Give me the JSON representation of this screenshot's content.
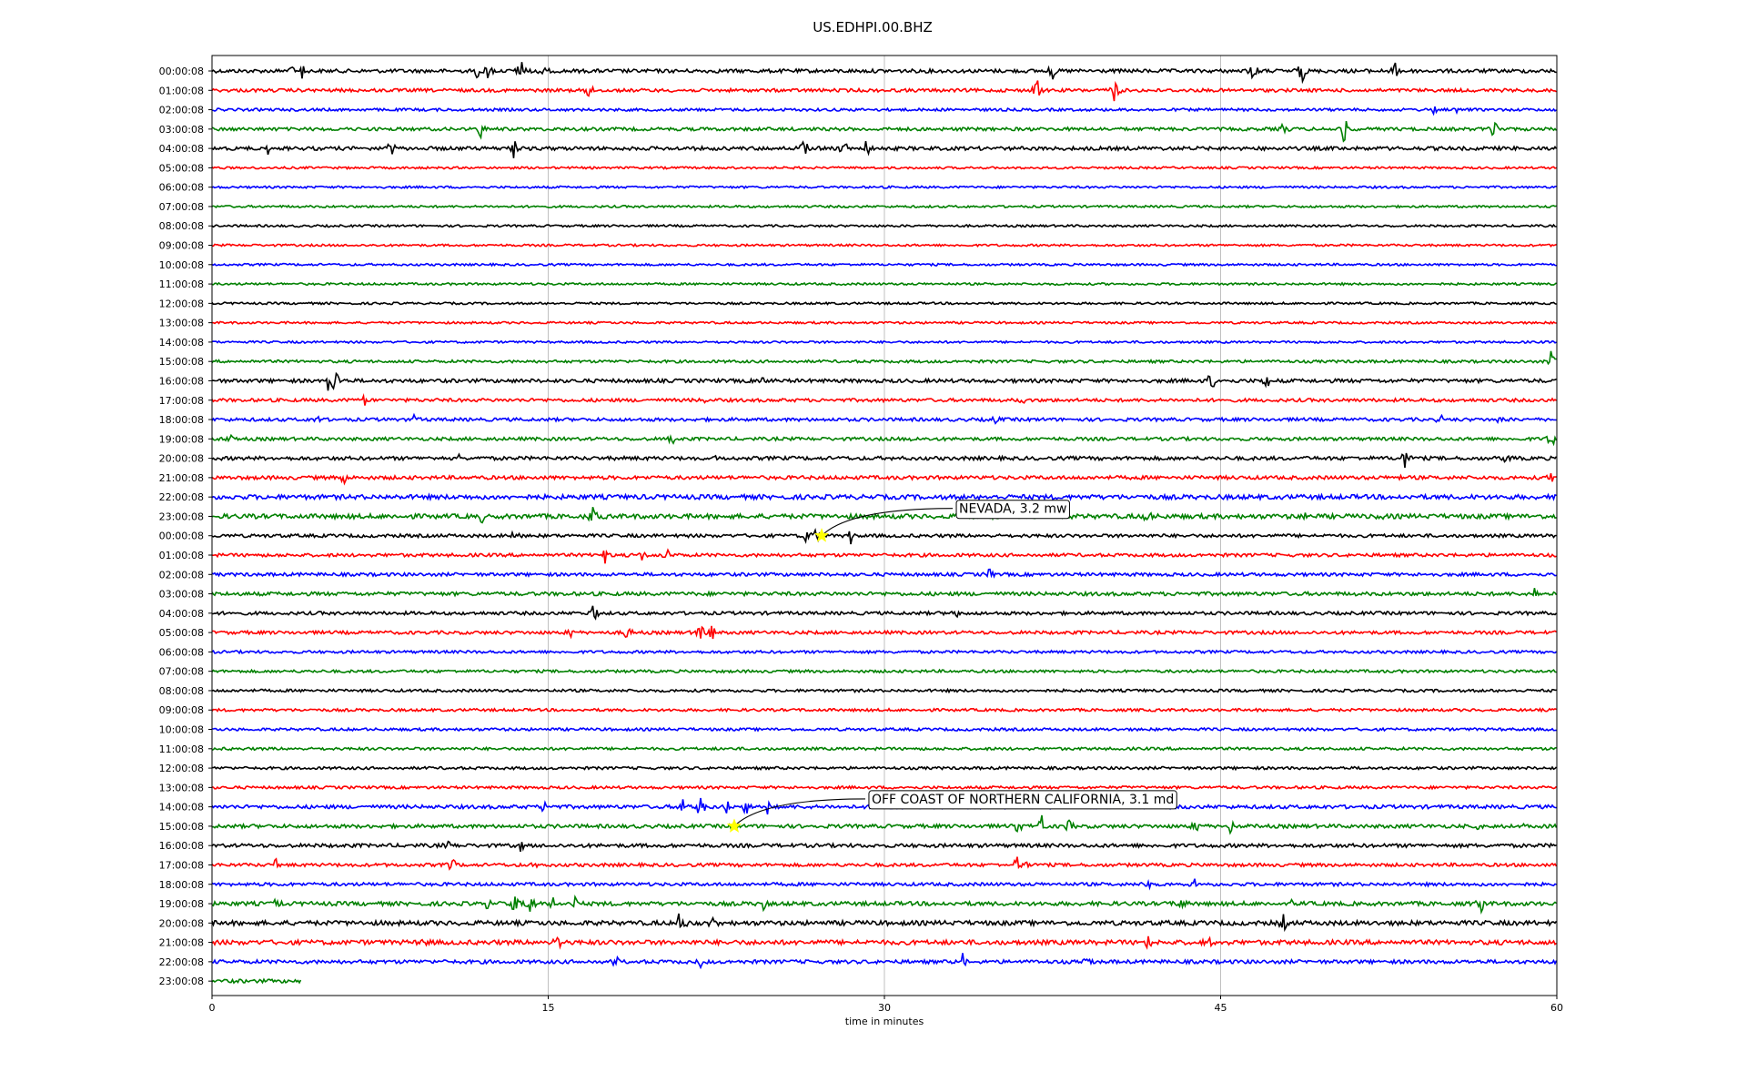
{
  "chart_data": {
    "type": "line",
    "title": "US.EDHPI.00.BHZ",
    "xlabel": "time in minutes",
    "ylabel": "",
    "xlim": [
      0,
      60
    ],
    "x_ticks": [
      "0",
      "15",
      "30",
      "45",
      "60"
    ],
    "x_tick_values": [
      0,
      15,
      30,
      45,
      60
    ],
    "grid": "vertical",
    "legend": "none",
    "color_cycle": [
      "#000000",
      "#ff0000",
      "#0000ff",
      "#008000"
    ],
    "rows": [
      {
        "label": "00:00:08",
        "start": 0,
        "end": 60,
        "noise": 2.0,
        "events": [
          [
            3.6,
            8
          ],
          [
            4,
            12
          ],
          [
            11.8,
            10
          ],
          [
            12.3,
            14
          ],
          [
            13.8,
            16
          ],
          [
            14.7,
            10
          ],
          [
            37.5,
            12
          ],
          [
            46.5,
            16
          ],
          [
            48.6,
            20
          ],
          [
            52.8,
            10
          ]
        ]
      },
      {
        "label": "01:00:08",
        "start": 0,
        "end": 60,
        "noise": 1.8,
        "events": [
          [
            16.8,
            12
          ],
          [
            36.8,
            18
          ],
          [
            40.3,
            18
          ]
        ]
      },
      {
        "label": "02:00:08",
        "start": 0,
        "end": 60,
        "noise": 1.5,
        "events": [
          [
            54.5,
            6
          ],
          [
            55.5,
            6
          ]
        ]
      },
      {
        "label": "03:00:08",
        "start": 0,
        "end": 60,
        "noise": 1.8,
        "events": [
          [
            12,
            12
          ],
          [
            47.8,
            8
          ],
          [
            50.5,
            18
          ],
          [
            57.2,
            14
          ]
        ]
      },
      {
        "label": "04:00:08",
        "start": 0,
        "end": 60,
        "noise": 2.0,
        "events": [
          [
            2.5,
            8
          ],
          [
            8,
            12
          ],
          [
            13.5,
            18
          ],
          [
            26.4,
            14
          ],
          [
            28.2,
            12
          ],
          [
            29.2,
            14
          ]
        ]
      },
      {
        "label": "05:00:08",
        "start": 0,
        "end": 60,
        "noise": 1.2,
        "events": []
      },
      {
        "label": "06:00:08",
        "start": 0,
        "end": 60,
        "noise": 1.2,
        "events": []
      },
      {
        "label": "07:00:08",
        "start": 0,
        "end": 60,
        "noise": 1.2,
        "events": []
      },
      {
        "label": "08:00:08",
        "start": 0,
        "end": 60,
        "noise": 1.2,
        "events": []
      },
      {
        "label": "09:00:08",
        "start": 0,
        "end": 60,
        "noise": 1.2,
        "events": []
      },
      {
        "label": "10:00:08",
        "start": 0,
        "end": 60,
        "noise": 1.2,
        "events": []
      },
      {
        "label": "11:00:08",
        "start": 0,
        "end": 60,
        "noise": 1.2,
        "events": []
      },
      {
        "label": "12:00:08",
        "start": 0,
        "end": 60,
        "noise": 1.2,
        "events": []
      },
      {
        "label": "13:00:08",
        "start": 0,
        "end": 60,
        "noise": 1.2,
        "events": []
      },
      {
        "label": "14:00:08",
        "start": 0,
        "end": 60,
        "noise": 1.2,
        "events": []
      },
      {
        "label": "15:00:08",
        "start": 0,
        "end": 60,
        "noise": 1.5,
        "events": [
          [
            59.8,
            18
          ]
        ]
      },
      {
        "label": "16:00:08",
        "start": 0,
        "end": 60,
        "noise": 2.0,
        "events": [
          [
            5.2,
            12
          ],
          [
            5.5,
            20
          ],
          [
            24.5,
            10
          ],
          [
            44.6,
            16
          ],
          [
            47,
            14
          ]
        ]
      },
      {
        "label": "17:00:08",
        "start": 0,
        "end": 60,
        "noise": 1.8,
        "events": [
          [
            6.8,
            8
          ],
          [
            22,
            6
          ],
          [
            36.2,
            6
          ]
        ]
      },
      {
        "label": "18:00:08",
        "start": 0,
        "end": 60,
        "noise": 1.8,
        "events": [
          [
            4.7,
            6
          ],
          [
            9,
            6
          ],
          [
            35,
            6
          ],
          [
            54.8,
            8
          ],
          [
            57.5,
            6
          ],
          [
            60,
            14
          ]
        ]
      },
      {
        "label": "19:00:08",
        "start": 0,
        "end": 60,
        "noise": 1.8,
        "events": [
          [
            0.8,
            8
          ],
          [
            20.5,
            10
          ],
          [
            31.2,
            5
          ],
          [
            59.8,
            16
          ]
        ]
      },
      {
        "label": "20:00:08",
        "start": 0,
        "end": 60,
        "noise": 2.0,
        "events": [
          [
            11,
            6
          ],
          [
            22.3,
            5
          ],
          [
            53.2,
            18
          ],
          [
            57.7,
            8
          ]
        ]
      },
      {
        "label": "21:00:08",
        "start": 0,
        "end": 60,
        "noise": 2.0,
        "events": [
          [
            5.9,
            8
          ],
          [
            53,
            5
          ],
          [
            59.8,
            10
          ]
        ]
      },
      {
        "label": "22:00:08",
        "start": 0,
        "end": 60,
        "noise": 2.5,
        "events": []
      },
      {
        "label": "23:00:08",
        "start": 0,
        "end": 60,
        "noise": 2.5,
        "events": [
          [
            12,
            8
          ],
          [
            17,
            14
          ],
          [
            41.7,
            10
          ],
          [
            48.8,
            8
          ],
          [
            52,
            10
          ]
        ]
      },
      {
        "label": "00:00:08",
        "start": 0,
        "end": 60,
        "noise": 1.8,
        "events": [
          [
            13.5,
            12
          ],
          [
            26.5,
            10
          ],
          [
            27,
            12
          ],
          [
            28.5,
            12
          ]
        ]
      },
      {
        "label": "01:00:08",
        "start": 0,
        "end": 60,
        "noise": 1.8,
        "events": [
          [
            17.5,
            12
          ],
          [
            19.2,
            10
          ],
          [
            20.3,
            10
          ]
        ]
      },
      {
        "label": "02:00:08",
        "start": 0,
        "end": 60,
        "noise": 1.8,
        "events": [
          [
            34.7,
            8
          ]
        ]
      },
      {
        "label": "03:00:08",
        "start": 0,
        "end": 60,
        "noise": 2.0,
        "events": [
          [
            59,
            8
          ]
        ]
      },
      {
        "label": "04:00:08",
        "start": 0,
        "end": 60,
        "noise": 1.8,
        "events": [
          [
            17,
            14
          ],
          [
            33.2,
            6
          ]
        ]
      },
      {
        "label": "05:00:08",
        "start": 0,
        "end": 60,
        "noise": 1.8,
        "events": [
          [
            16,
            6
          ],
          [
            18.5,
            12
          ],
          [
            21.8,
            16
          ],
          [
            22.3,
            12
          ]
        ]
      },
      {
        "label": "06:00:08",
        "start": 0,
        "end": 60,
        "noise": 1.5,
        "events": []
      },
      {
        "label": "07:00:08",
        "start": 0,
        "end": 60,
        "noise": 1.5,
        "events": []
      },
      {
        "label": "08:00:08",
        "start": 0,
        "end": 60,
        "noise": 1.5,
        "events": []
      },
      {
        "label": "09:00:08",
        "start": 0,
        "end": 60,
        "noise": 1.5,
        "events": []
      },
      {
        "label": "10:00:08",
        "start": 0,
        "end": 60,
        "noise": 1.5,
        "events": []
      },
      {
        "label": "11:00:08",
        "start": 0,
        "end": 60,
        "noise": 1.5,
        "events": []
      },
      {
        "label": "12:00:08",
        "start": 0,
        "end": 60,
        "noise": 1.5,
        "events": []
      },
      {
        "label": "13:00:08",
        "start": 0,
        "end": 60,
        "noise": 1.5,
        "events": []
      },
      {
        "label": "14:00:08",
        "start": 0,
        "end": 60,
        "noise": 2.0,
        "events": [
          [
            14.8,
            8
          ],
          [
            21,
            12
          ],
          [
            21.8,
            18
          ],
          [
            22.9,
            24
          ],
          [
            23.8,
            16
          ],
          [
            24.8,
            10
          ]
        ]
      },
      {
        "label": "15:00:08",
        "start": 0,
        "end": 60,
        "noise": 2.0,
        "events": [
          [
            36,
            14
          ],
          [
            37,
            14
          ],
          [
            38.2,
            10
          ],
          [
            43.9,
            8
          ],
          [
            45.4,
            12
          ],
          [
            56.5,
            8
          ],
          [
            58.5,
            6
          ]
        ]
      },
      {
        "label": "16:00:08",
        "start": 0,
        "end": 60,
        "noise": 2.0,
        "events": [
          [
            10.5,
            6
          ],
          [
            13.8,
            8
          ]
        ]
      },
      {
        "label": "17:00:08",
        "start": 0,
        "end": 60,
        "noise": 1.8,
        "events": [
          [
            2.9,
            12
          ],
          [
            10.7,
            10
          ],
          [
            14.4,
            6
          ],
          [
            35.9,
            10
          ],
          [
            36.4,
            8
          ]
        ]
      },
      {
        "label": "18:00:08",
        "start": 0,
        "end": 60,
        "noise": 1.8,
        "events": [
          [
            41.8,
            6
          ],
          [
            43.8,
            8
          ]
        ]
      },
      {
        "label": "19:00:08",
        "start": 0,
        "end": 60,
        "noise": 2.2,
        "events": [
          [
            2.8,
            8
          ],
          [
            12.3,
            8
          ],
          [
            13.5,
            12
          ],
          [
            14.2,
            14
          ],
          [
            15.2,
            10
          ],
          [
            16.2,
            8
          ],
          [
            24.6,
            8
          ],
          [
            43.2,
            10
          ],
          [
            48.2,
            6
          ],
          [
            56.6,
            10
          ]
        ]
      },
      {
        "label": "20:00:08",
        "start": 0,
        "end": 60,
        "noise": 2.5,
        "events": [
          [
            20.8,
            12
          ],
          [
            21.2,
            10
          ],
          [
            22.3,
            12
          ],
          [
            47.8,
            10
          ]
        ]
      },
      {
        "label": "21:00:08",
        "start": 0,
        "end": 60,
        "noise": 2.5,
        "events": [
          [
            9.5,
            12
          ],
          [
            15.4,
            14
          ],
          [
            41.8,
            16
          ],
          [
            44.5,
            16
          ]
        ]
      },
      {
        "label": "22:00:08",
        "start": 0,
        "end": 60,
        "noise": 2.0,
        "events": [
          [
            18,
            10
          ],
          [
            21.8,
            8
          ],
          [
            33.5,
            12
          ],
          [
            39,
            8
          ]
        ]
      },
      {
        "label": "23:00:08",
        "start": 0,
        "end": 4,
        "noise": 2.0,
        "events": []
      }
    ],
    "annotations": [
      {
        "text": "NEVADA, 3.2 mw",
        "row": 24,
        "x": 27.2
      },
      {
        "text": "OFF COAST OF NORTHERN CALIFORNIA, 3.1 md",
        "row": 39,
        "x": 23.3
      }
    ]
  }
}
